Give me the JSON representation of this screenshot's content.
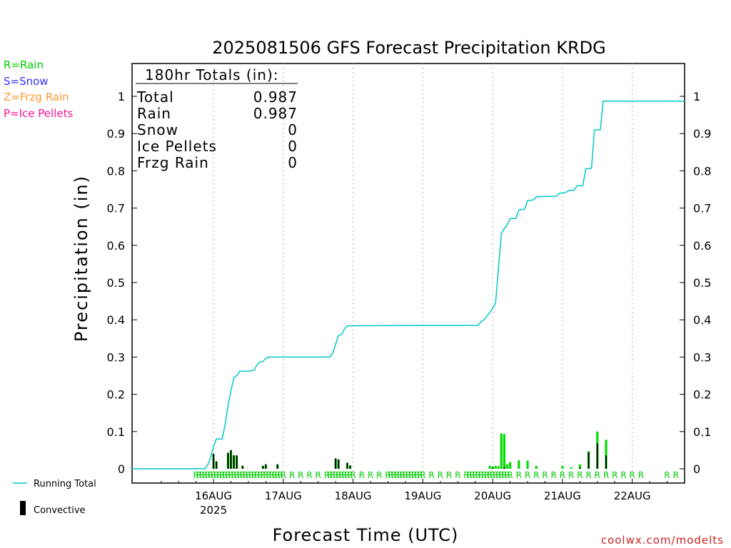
{
  "chart_data": {
    "type": "bar",
    "title": "2025081506 GFS Forecast Precipitation KRDG",
    "xlabel": "Forecast Time (UTC)",
    "ylabel": "Precipitation (in)",
    "ylim": [
      0,
      1
    ],
    "y_ticks": [
      0,
      0.1,
      0.2,
      0.3,
      0.4,
      0.5,
      0.6,
      0.7,
      0.8,
      0.9,
      1
    ],
    "x_range_hours": [
      -10,
      180
    ],
    "x_ticks": [
      {
        "hour": 18,
        "label": "16AUG",
        "sublabel": "2025"
      },
      {
        "hour": 42,
        "label": "17AUG",
        "sublabel": ""
      },
      {
        "hour": 66,
        "label": "18AUG",
        "sublabel": ""
      },
      {
        "hour": 90,
        "label": "19AUG",
        "sublabel": ""
      },
      {
        "hour": 114,
        "label": "20AUG",
        "sublabel": ""
      },
      {
        "hour": 138,
        "label": "21AUG",
        "sublabel": ""
      },
      {
        "hour": 162,
        "label": "22AUG",
        "sublabel": ""
      }
    ],
    "grid": "vertical-dotted",
    "legend": {
      "precip_types": [
        {
          "label": "R=Rain",
          "color": "#00cc00"
        },
        {
          "label": "S=Snow",
          "color": "#3333ff"
        },
        {
          "label": "Z=Frzg Rain",
          "color": "#ff9933"
        },
        {
          "label": "P=Ice Pellets",
          "color": "#ff1493"
        }
      ],
      "running_total_label": "Running Total",
      "convective_label": "Convective",
      "running_total_color": "#00c8c8"
    },
    "totals": {
      "header": "180hr Totals (in):",
      "rows": [
        {
          "label": "Total",
          "value": "0.987"
        },
        {
          "label": "Rain",
          "value": "0.987"
        },
        {
          "label": "Snow",
          "value": "0"
        },
        {
          "label": "Ice Pellets",
          "value": "0"
        },
        {
          "label": "Frzg Rain",
          "value": "0"
        }
      ]
    },
    "series": [
      {
        "name": "Running Total",
        "points": [
          [
            -10,
            0
          ],
          [
            15,
            0
          ],
          [
            16,
            0.01
          ],
          [
            17,
            0.03
          ],
          [
            18,
            0.06
          ],
          [
            19,
            0.08
          ],
          [
            21,
            0.08
          ],
          [
            22,
            0.12
          ],
          [
            23,
            0.17
          ],
          [
            24,
            0.21
          ],
          [
            25,
            0.245
          ],
          [
            26,
            0.25
          ],
          [
            27,
            0.262
          ],
          [
            30,
            0.262
          ],
          [
            32,
            0.265
          ],
          [
            33,
            0.28
          ],
          [
            34,
            0.287
          ],
          [
            35,
            0.288
          ],
          [
            36,
            0.297
          ],
          [
            37,
            0.3
          ],
          [
            58,
            0.3
          ],
          [
            59,
            0.31
          ],
          [
            60,
            0.335
          ],
          [
            61,
            0.358
          ],
          [
            62,
            0.36
          ],
          [
            63,
            0.375
          ],
          [
            64,
            0.384
          ],
          [
            90,
            0.385
          ],
          [
            109,
            0.385
          ],
          [
            110,
            0.395
          ],
          [
            111,
            0.4
          ],
          [
            112,
            0.41
          ],
          [
            113,
            0.42
          ],
          [
            114,
            0.43
          ],
          [
            115,
            0.445
          ],
          [
            116,
            0.54
          ],
          [
            117,
            0.632
          ],
          [
            118,
            0.645
          ],
          [
            119,
            0.655
          ],
          [
            120,
            0.672
          ],
          [
            122,
            0.672
          ],
          [
            123,
            0.695
          ],
          [
            125,
            0.697
          ],
          [
            126,
            0.72
          ],
          [
            128,
            0.722
          ],
          [
            129,
            0.73
          ],
          [
            131,
            0.731
          ],
          [
            136,
            0.732
          ],
          [
            137,
            0.74
          ],
          [
            139,
            0.741
          ],
          [
            140,
            0.747
          ],
          [
            142,
            0.748
          ],
          [
            143,
            0.76
          ],
          [
            145,
            0.76
          ],
          [
            146,
            0.805
          ],
          [
            148,
            0.807
          ],
          [
            149,
            0.91
          ],
          [
            151,
            0.91
          ],
          [
            152,
            0.987
          ],
          [
            180,
            0.987
          ]
        ]
      },
      {
        "name": "Rain",
        "values": [
          [
            18,
            0.04
          ],
          [
            19,
            0.02
          ],
          [
            23,
            0.043
          ],
          [
            24,
            0.05
          ],
          [
            25,
            0.036
          ],
          [
            26,
            0.036
          ],
          [
            28,
            0.008
          ],
          [
            35,
            0.008
          ],
          [
            36,
            0.012
          ],
          [
            40,
            0.012
          ],
          [
            60,
            0.028
          ],
          [
            61,
            0.025
          ],
          [
            64,
            0.016
          ],
          [
            65,
            0.009
          ],
          [
            113,
            0.008
          ],
          [
            114,
            0.006
          ],
          [
            115,
            0.008
          ],
          [
            116,
            0.007
          ],
          [
            117,
            0.095
          ],
          [
            118,
            0.093
          ],
          [
            119,
            0.012
          ],
          [
            120,
            0.018
          ],
          [
            123,
            0.023
          ],
          [
            126,
            0.022
          ],
          [
            129,
            0.008
          ],
          [
            138,
            0.008
          ],
          [
            141,
            0.004
          ],
          [
            144,
            0.012
          ],
          [
            147,
            0.047
          ],
          [
            150,
            0.1
          ],
          [
            153,
            0.078
          ]
        ]
      },
      {
        "name": "Convective",
        "values": [
          [
            18,
            0.04
          ],
          [
            19,
            0.02
          ],
          [
            23,
            0.043
          ],
          [
            24,
            0.05
          ],
          [
            25,
            0.036
          ],
          [
            26,
            0.036
          ],
          [
            28,
            0.008
          ],
          [
            35,
            0.008
          ],
          [
            36,
            0.012
          ],
          [
            40,
            0.012
          ],
          [
            60,
            0.028
          ],
          [
            61,
            0.025
          ],
          [
            64,
            0.016
          ],
          [
            65,
            0.009
          ],
          [
            114,
            0.003
          ],
          [
            118,
            0.004
          ],
          [
            144,
            0.003
          ],
          [
            147,
            0.045
          ],
          [
            150,
            0.068
          ],
          [
            153,
            0.036
          ]
        ]
      }
    ],
    "precip_type_marks": {
      "label": "R",
      "hours": [
        12,
        13,
        14,
        15,
        16,
        17,
        18,
        19,
        20,
        21,
        22,
        23,
        24,
        25,
        26,
        27,
        28,
        29,
        30,
        31,
        32,
        33,
        34,
        35,
        36,
        37,
        38,
        39,
        40,
        41,
        42,
        45,
        48,
        51,
        54,
        57,
        58,
        59,
        60,
        61,
        62,
        63,
        64,
        65,
        66,
        69,
        72,
        75,
        78,
        79,
        80,
        81,
        82,
        83,
        84,
        85,
        86,
        87,
        88,
        89,
        90,
        93,
        96,
        99,
        102,
        105,
        106,
        107,
        108,
        109,
        110,
        111,
        112,
        113,
        114,
        115,
        116,
        117,
        118,
        119,
        120,
        123,
        126,
        129,
        132,
        135,
        138,
        141,
        144,
        147,
        150,
        153,
        156,
        159,
        162,
        165,
        174,
        177
      ]
    },
    "watermark": "coolwx.com/modelts"
  }
}
